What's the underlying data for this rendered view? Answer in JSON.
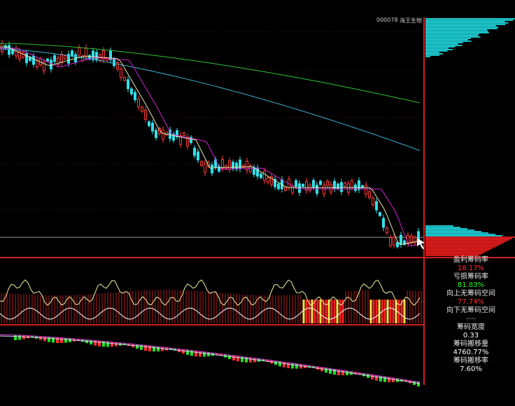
{
  "header": {
    "code": "000078",
    "name": "海王生物"
  },
  "stats": [
    {
      "label": "盈利筹码率",
      "value": "18.17%"
    },
    {
      "label": "亏损筹码率",
      "value": "81.83%"
    },
    {
      "label": "向上无筹码空间",
      "value": "77.74%"
    },
    {
      "label": "向下无筹码空间",
      "value": "----"
    },
    {
      "label": "筹码宽度",
      "value": "0.33"
    },
    {
      "label": "筹码搬移量",
      "value": "4760.77%"
    },
    {
      "label": "筹码搬移率",
      "value": "7.60%"
    }
  ]
}
